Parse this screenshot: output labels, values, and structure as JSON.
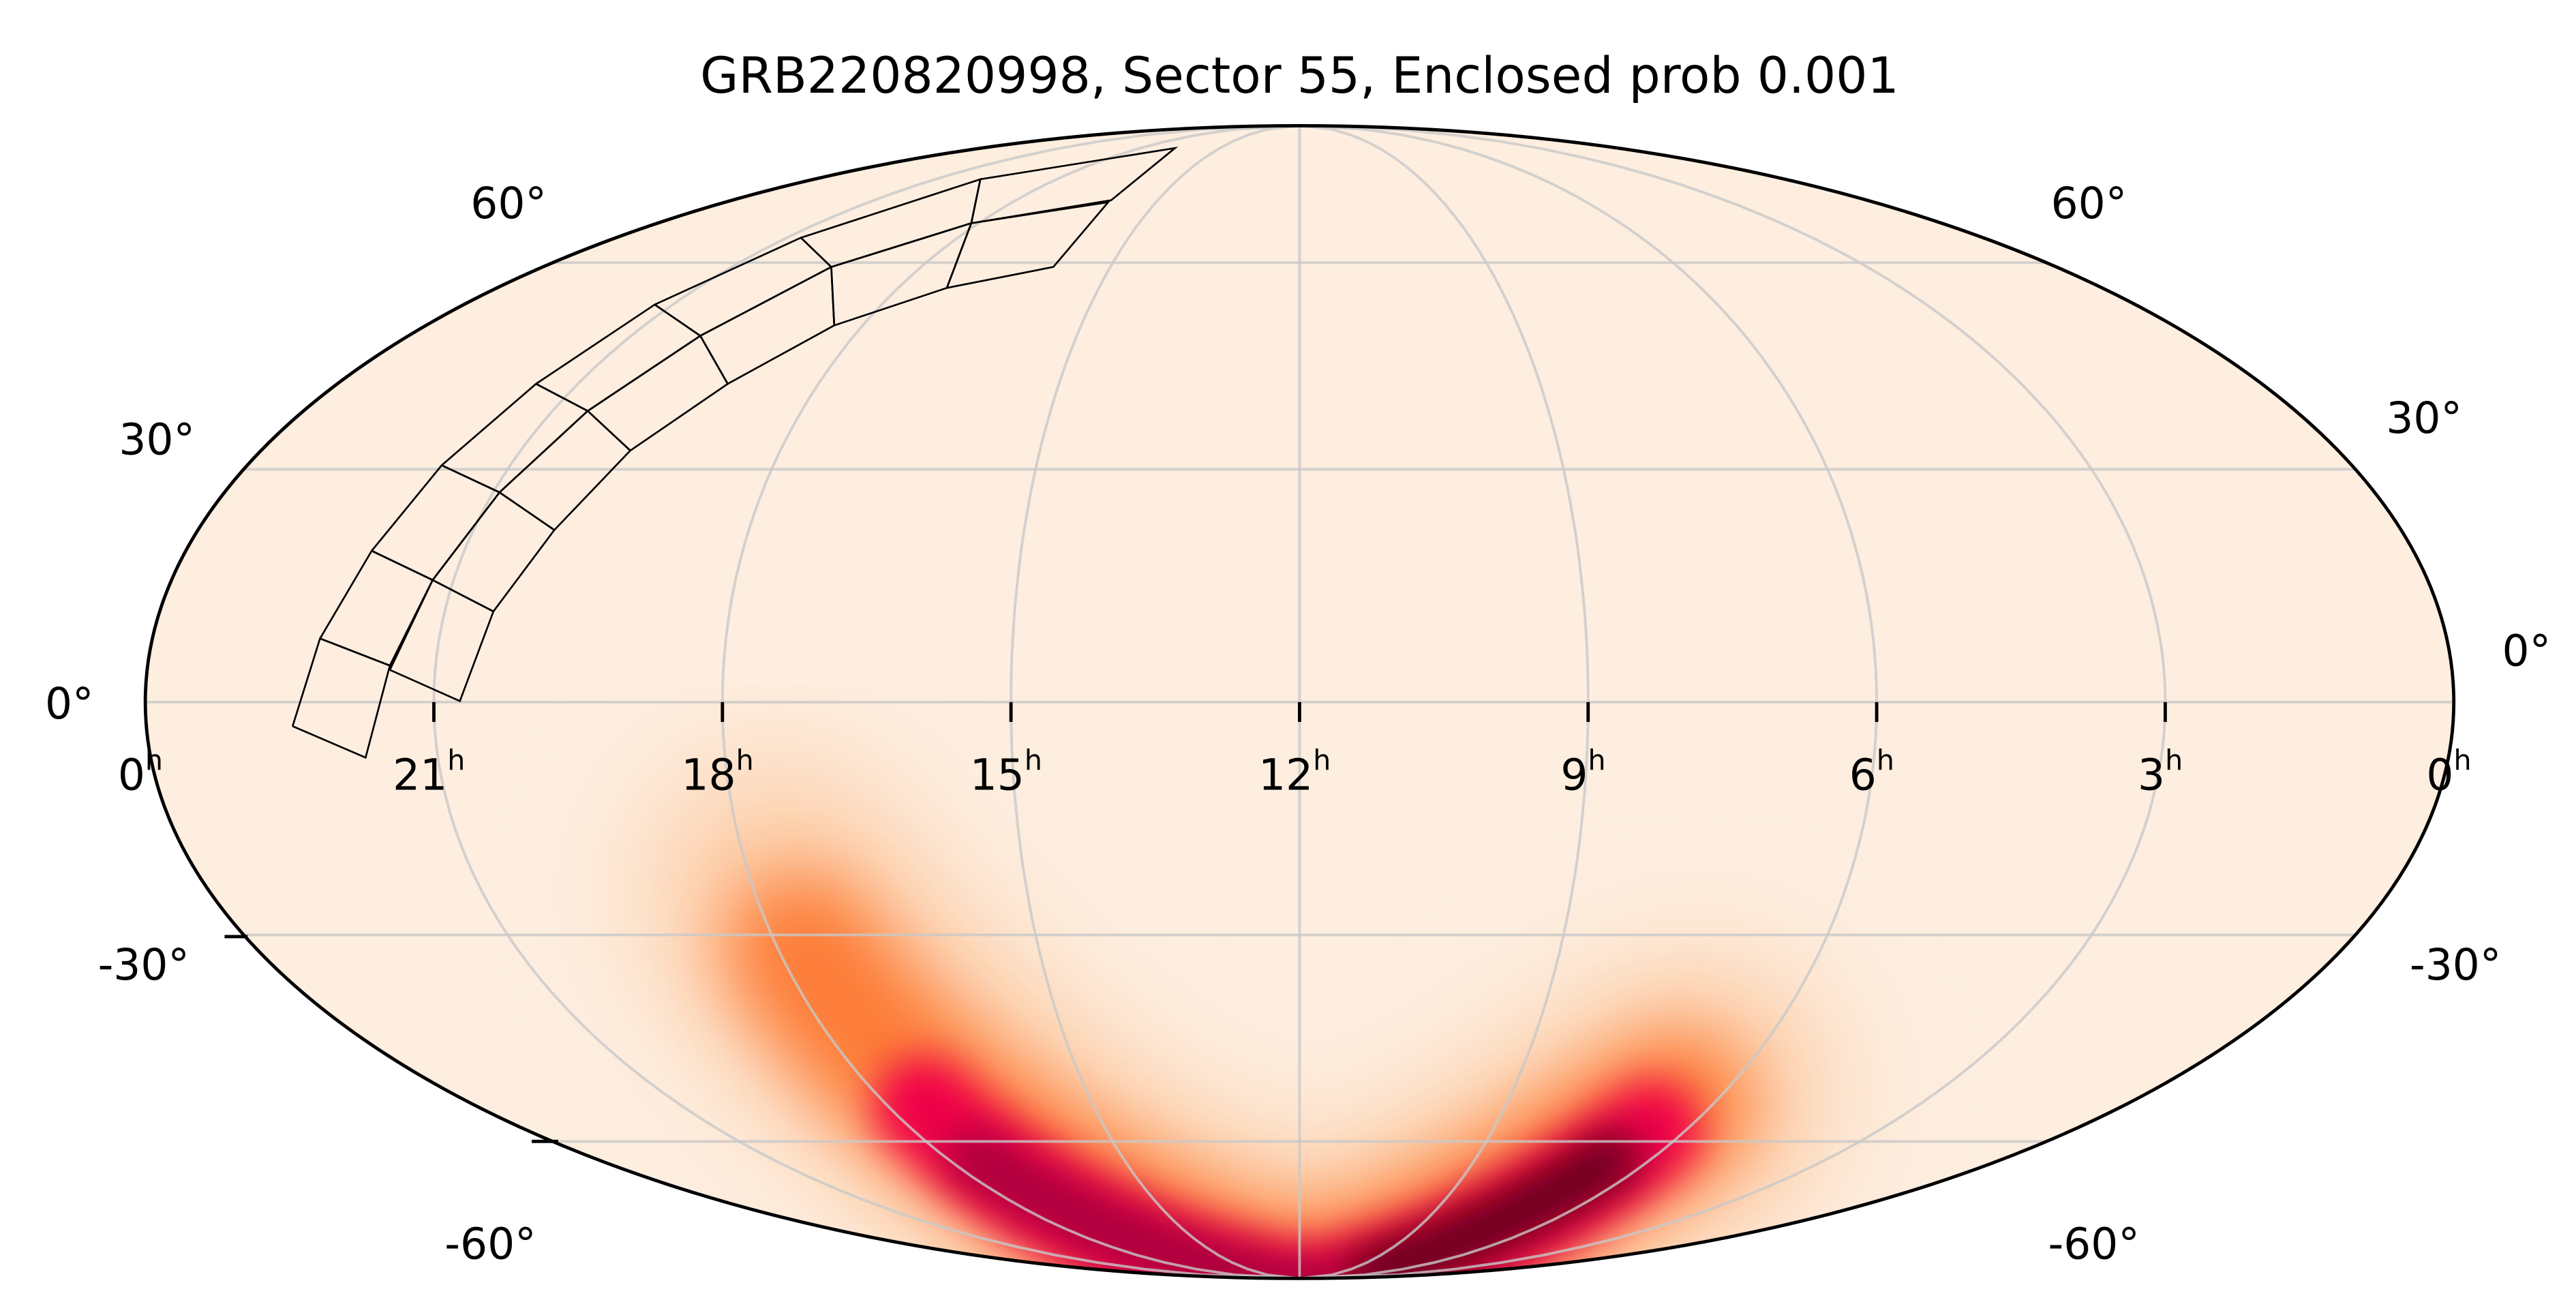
{
  "chart_data": {
    "type": "heatmap",
    "projection": "mollweide",
    "title": "GRB220820998, Sector 55, Enclosed prob 0.001",
    "colormap": [
      "#fdeee0",
      "#fdb27a",
      "#fd6a2e",
      "#f0064a",
      "#a8003e",
      "#5a0010"
    ],
    "ra_tick_labels": [
      {
        "h": "0",
        "ra": 24
      },
      {
        "h": "21",
        "ra": 21
      },
      {
        "h": "18",
        "ra": 18
      },
      {
        "h": "15",
        "ra": 15
      },
      {
        "h": "12",
        "ra": 12
      },
      {
        "h": "9",
        "ra": 9
      },
      {
        "h": "6",
        "ra": 6
      },
      {
        "h": "3",
        "ra": 3
      },
      {
        "h": "0",
        "ra": 0
      }
    ],
    "ra_unit": "h",
    "dec_tick_labels": [
      "60°",
      "30°",
      "0°",
      "-30°",
      "-60°"
    ],
    "dec_values": [
      60,
      30,
      0,
      -30,
      -60
    ],
    "grid": true,
    "probability_regions": [
      {
        "ra_range_h": [
          10,
          18
        ],
        "dec_range": [
          -85,
          -30
        ],
        "peak": "moderate"
      },
      {
        "ra_range_h": [
          7,
          12
        ],
        "dec_range": [
          -85,
          -50
        ],
        "peak": "highest"
      }
    ],
    "footprint": "TESS Sector 55 camera CCD tiles, RA ~14h-23h, Dec ~0° to +70°"
  }
}
